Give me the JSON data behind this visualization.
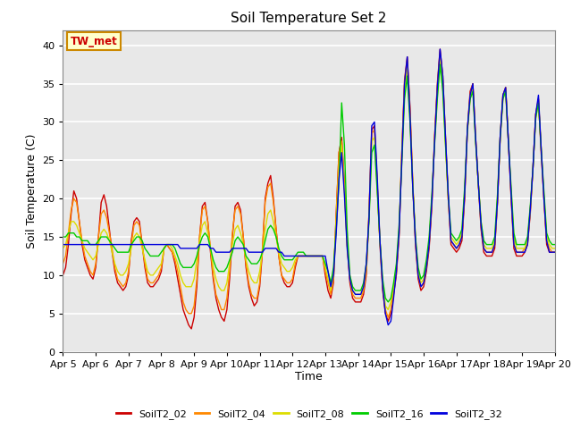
{
  "title": "Soil Temperature Set 2",
  "xlabel": "Time",
  "ylabel": "Soil Temperature (C)",
  "ylim": [
    0,
    42
  ],
  "yticks": [
    0,
    5,
    10,
    15,
    20,
    25,
    30,
    35,
    40
  ],
  "background_color": "#e8e8e8",
  "grid_color": "#ffffff",
  "legend_entries": [
    "SoilT2_02",
    "SoilT2_04",
    "SoilT2_08",
    "SoilT2_16",
    "SoilT2_32"
  ],
  "line_colors": [
    "#cc0000",
    "#ff8800",
    "#dddd00",
    "#00cc00",
    "#0000dd"
  ],
  "annotation_text": "TW_met",
  "annotation_color": "#cc0000",
  "annotation_bg": "#ffffcc",
  "annotation_border": "#cc8800",
  "series": {
    "times_days": [
      0.0,
      0.083,
      0.167,
      0.25,
      0.333,
      0.417,
      0.5,
      0.583,
      0.667,
      0.75,
      0.833,
      0.917,
      1.0,
      1.083,
      1.167,
      1.25,
      1.333,
      1.417,
      1.5,
      1.583,
      1.667,
      1.75,
      1.833,
      1.917,
      2.0,
      2.083,
      2.167,
      2.25,
      2.333,
      2.417,
      2.5,
      2.583,
      2.667,
      2.75,
      2.833,
      2.917,
      3.0,
      3.083,
      3.167,
      3.25,
      3.333,
      3.417,
      3.5,
      3.583,
      3.667,
      3.75,
      3.833,
      3.917,
      4.0,
      4.083,
      4.167,
      4.25,
      4.333,
      4.417,
      4.5,
      4.583,
      4.667,
      4.75,
      4.833,
      4.917,
      5.0,
      5.083,
      5.167,
      5.25,
      5.333,
      5.417,
      5.5,
      5.583,
      5.667,
      5.75,
      5.833,
      5.917,
      6.0,
      6.083,
      6.167,
      6.25,
      6.333,
      6.417,
      6.5,
      6.583,
      6.667,
      6.75,
      6.833,
      6.917,
      7.0,
      7.083,
      7.167,
      7.25,
      7.333,
      7.417,
      7.5,
      7.583,
      7.667,
      7.75,
      7.833,
      7.917,
      8.0,
      8.083,
      8.167,
      8.25,
      8.333,
      8.417,
      8.5,
      8.583,
      8.667,
      8.75,
      8.833,
      8.917,
      9.0,
      9.083,
      9.167,
      9.25,
      9.333,
      9.417,
      9.5,
      9.583,
      9.667,
      9.75,
      9.833,
      9.917,
      10.0,
      10.083,
      10.167,
      10.25,
      10.333,
      10.417,
      10.5,
      10.583,
      10.667,
      10.75,
      10.833,
      10.917,
      11.0,
      11.083,
      11.167,
      11.25,
      11.333,
      11.417,
      11.5,
      11.583,
      11.667,
      11.75,
      11.833,
      11.917,
      12.0,
      12.083,
      12.167,
      12.25,
      12.333,
      12.417,
      12.5,
      12.583,
      12.667,
      12.75,
      12.833,
      12.917,
      13.0,
      13.083,
      13.167,
      13.25,
      13.333,
      13.417,
      13.5,
      13.583,
      13.667,
      13.75,
      13.833,
      13.917,
      14.0,
      14.083,
      14.167,
      14.25,
      14.333,
      14.417,
      14.5,
      14.583,
      14.667,
      14.75,
      14.833,
      14.917,
      15.0
    ],
    "SoilT2_02": [
      10.0,
      11.0,
      14.0,
      18.0,
      21.0,
      20.0,
      17.0,
      14.0,
      12.0,
      11.0,
      10.0,
      9.5,
      11.0,
      15.0,
      19.5,
      20.5,
      19.0,
      16.0,
      13.0,
      10.5,
      9.0,
      8.5,
      8.0,
      8.5,
      10.0,
      14.5,
      17.0,
      17.5,
      17.0,
      14.0,
      11.0,
      9.0,
      8.5,
      8.5,
      9.0,
      9.5,
      10.5,
      13.5,
      14.0,
      13.5,
      13.0,
      11.5,
      9.5,
      7.5,
      5.5,
      4.5,
      3.5,
      3.0,
      4.5,
      8.5,
      15.0,
      19.0,
      19.5,
      17.0,
      13.0,
      9.5,
      7.0,
      5.5,
      4.5,
      4.0,
      5.5,
      9.5,
      15.0,
      19.0,
      19.5,
      18.5,
      15.0,
      11.0,
      8.5,
      7.0,
      6.0,
      6.5,
      8.5,
      13.0,
      20.0,
      22.0,
      23.0,
      20.0,
      16.0,
      12.5,
      10.0,
      9.0,
      8.5,
      8.5,
      9.0,
      11.0,
      12.5,
      12.5,
      12.5,
      12.5,
      12.5,
      12.5,
      12.5,
      12.5,
      12.5,
      12.5,
      10.0,
      8.0,
      7.0,
      9.0,
      18.0,
      26.0,
      28.0,
      22.0,
      14.0,
      9.0,
      7.0,
      6.5,
      6.5,
      6.5,
      7.5,
      10.0,
      18.0,
      29.0,
      29.5,
      22.0,
      14.0,
      8.0,
      5.0,
      4.0,
      5.0,
      7.5,
      10.0,
      15.0,
      26.0,
      35.5,
      38.5,
      32.0,
      22.0,
      14.0,
      9.5,
      8.0,
      8.5,
      10.5,
      13.5,
      19.0,
      28.0,
      35.0,
      39.5,
      36.0,
      28.0,
      20.0,
      14.0,
      13.5,
      13.0,
      13.5,
      14.5,
      20.0,
      29.0,
      34.0,
      35.0,
      28.0,
      22.0,
      16.0,
      13.0,
      12.5,
      12.5,
      12.5,
      13.5,
      19.5,
      28.0,
      33.5,
      34.5,
      27.5,
      20.0,
      13.5,
      12.5,
      12.5,
      12.5,
      13.0,
      14.0,
      18.0,
      24.0,
      31.0,
      33.0,
      26.0,
      20.0,
      14.0,
      13.0,
      13.0,
      13.0
    ],
    "SoilT2_04": [
      11.5,
      12.5,
      15.5,
      18.5,
      20.0,
      19.5,
      17.0,
      14.5,
      12.5,
      11.5,
      10.5,
      10.0,
      11.5,
      15.0,
      18.0,
      18.5,
      17.5,
      15.5,
      13.5,
      11.0,
      9.5,
      9.0,
      8.5,
      9.0,
      10.5,
      14.0,
      16.5,
      17.0,
      16.5,
      14.0,
      11.5,
      9.5,
      9.0,
      9.0,
      9.5,
      10.0,
      11.0,
      13.5,
      14.0,
      13.5,
      13.0,
      12.0,
      10.5,
      8.5,
      6.5,
      5.5,
      5.0,
      5.0,
      6.0,
      9.5,
      15.0,
      18.5,
      19.0,
      17.0,
      13.5,
      10.0,
      7.5,
      6.5,
      5.5,
      5.5,
      7.0,
      10.5,
      15.5,
      18.5,
      19.0,
      18.0,
      15.0,
      11.5,
      9.0,
      7.5,
      7.0,
      7.0,
      9.0,
      13.5,
      19.5,
      21.5,
      22.0,
      19.5,
      16.0,
      12.5,
      10.0,
      9.5,
      9.0,
      9.0,
      9.5,
      11.5,
      12.5,
      12.5,
      12.5,
      12.5,
      12.5,
      12.5,
      12.5,
      12.5,
      12.5,
      12.5,
      10.5,
      9.0,
      7.5,
      9.5,
      18.0,
      26.0,
      27.5,
      21.5,
      14.0,
      9.5,
      7.5,
      7.0,
      7.0,
      7.0,
      8.0,
      10.5,
      18.0,
      28.5,
      29.0,
      22.0,
      14.5,
      8.5,
      5.5,
      4.5,
      5.5,
      8.0,
      10.5,
      15.5,
      26.0,
      35.0,
      38.0,
      31.5,
      22.0,
      14.5,
      10.0,
      8.5,
      9.0,
      11.0,
      14.0,
      19.5,
      28.0,
      34.5,
      39.0,
      35.5,
      27.5,
      20.0,
      14.5,
      14.0,
      13.5,
      14.0,
      15.0,
      20.5,
      29.0,
      33.5,
      35.0,
      28.0,
      22.0,
      16.5,
      13.5,
      13.0,
      13.0,
      13.0,
      14.0,
      19.5,
      28.0,
      33.5,
      34.5,
      27.5,
      20.5,
      14.0,
      13.0,
      13.0,
      13.0,
      13.5,
      14.5,
      18.5,
      24.0,
      31.0,
      33.0,
      26.5,
      20.0,
      14.5,
      13.5,
      13.0,
      13.0
    ],
    "SoilT2_08": [
      13.5,
      14.0,
      15.5,
      17.0,
      17.0,
      16.5,
      15.5,
      14.5,
      13.5,
      13.0,
      12.5,
      12.0,
      12.5,
      14.0,
      15.5,
      16.0,
      15.5,
      14.5,
      13.0,
      11.5,
      10.5,
      10.0,
      10.0,
      10.5,
      11.5,
      13.5,
      15.0,
      15.5,
      15.0,
      13.5,
      12.0,
      10.5,
      10.0,
      10.0,
      10.5,
      11.0,
      11.5,
      13.5,
      14.0,
      14.0,
      13.5,
      12.5,
      11.5,
      10.0,
      9.0,
      8.5,
      8.5,
      8.5,
      9.5,
      12.0,
      14.5,
      16.5,
      17.0,
      15.5,
      13.5,
      11.0,
      9.5,
      8.5,
      8.0,
      8.0,
      9.0,
      11.5,
      14.0,
      16.0,
      16.5,
      15.5,
      14.0,
      12.0,
      10.5,
      9.5,
      9.0,
      9.0,
      10.5,
      13.0,
      16.0,
      18.0,
      18.5,
      17.0,
      15.0,
      13.0,
      11.5,
      11.0,
      10.5,
      10.5,
      11.0,
      12.0,
      12.5,
      12.5,
      12.5,
      12.5,
      12.5,
      12.5,
      12.5,
      12.5,
      12.5,
      12.5,
      11.0,
      9.5,
      8.0,
      10.0,
      17.0,
      24.0,
      27.0,
      21.0,
      14.0,
      10.0,
      8.0,
      7.5,
      7.5,
      7.5,
      8.5,
      11.0,
      17.5,
      27.5,
      28.0,
      21.5,
      14.5,
      9.0,
      6.0,
      5.5,
      6.5,
      8.5,
      11.0,
      16.0,
      25.5,
      34.0,
      37.0,
      30.5,
      22.0,
      15.0,
      10.5,
      9.0,
      9.5,
      11.5,
      14.5,
      20.0,
      27.5,
      33.5,
      38.0,
      34.5,
      27.0,
      20.0,
      15.0,
      14.5,
      14.0,
      14.5,
      15.5,
      21.0,
      28.5,
      33.0,
      34.5,
      27.5,
      22.0,
      17.0,
      14.0,
      13.5,
      13.5,
      13.5,
      14.5,
      20.0,
      27.5,
      33.0,
      34.0,
      27.5,
      21.0,
      15.0,
      13.5,
      13.5,
      13.5,
      13.5,
      14.5,
      18.5,
      24.0,
      30.5,
      32.5,
      26.5,
      20.5,
      15.0,
      14.0,
      13.5,
      13.5
    ],
    "SoilT2_16": [
      15.0,
      15.0,
      15.5,
      15.5,
      15.5,
      15.0,
      15.0,
      14.5,
      14.5,
      14.5,
      14.0,
      14.0,
      14.0,
      14.5,
      15.0,
      15.0,
      15.0,
      14.5,
      14.0,
      13.5,
      13.0,
      13.0,
      13.0,
      13.0,
      13.0,
      14.0,
      14.5,
      15.0,
      15.0,
      14.5,
      13.5,
      13.0,
      12.5,
      12.5,
      12.5,
      12.5,
      13.0,
      13.5,
      14.0,
      14.0,
      14.0,
      13.5,
      12.5,
      11.5,
      11.0,
      11.0,
      11.0,
      11.0,
      11.5,
      12.5,
      14.0,
      15.0,
      15.5,
      15.0,
      13.5,
      12.0,
      11.0,
      10.5,
      10.5,
      10.5,
      11.0,
      12.0,
      13.0,
      14.5,
      15.0,
      14.5,
      14.0,
      12.5,
      12.0,
      11.5,
      11.5,
      11.5,
      12.0,
      13.0,
      14.5,
      16.0,
      16.5,
      16.0,
      15.0,
      13.5,
      12.5,
      12.0,
      12.0,
      12.0,
      12.0,
      12.5,
      13.0,
      13.0,
      13.0,
      12.5,
      12.5,
      12.5,
      12.5,
      12.5,
      12.5,
      12.5,
      11.5,
      10.5,
      9.0,
      11.0,
      16.0,
      22.0,
      32.5,
      27.0,
      16.0,
      10.0,
      8.5,
      8.0,
      8.0,
      8.0,
      9.0,
      11.5,
      17.0,
      26.0,
      27.0,
      21.0,
      14.5,
      9.5,
      7.0,
      6.5,
      7.0,
      9.0,
      11.5,
      16.5,
      24.5,
      33.0,
      36.0,
      30.0,
      21.5,
      15.0,
      11.0,
      9.5,
      10.0,
      12.0,
      15.0,
      20.5,
      27.0,
      33.0,
      37.5,
      34.0,
      27.0,
      20.5,
      15.5,
      15.0,
      14.5,
      15.0,
      16.0,
      21.5,
      29.0,
      33.0,
      34.0,
      27.5,
      22.0,
      17.0,
      14.5,
      14.0,
      14.0,
      14.0,
      15.0,
      20.5,
      28.0,
      33.0,
      34.0,
      27.5,
      21.5,
      15.5,
      14.0,
      14.0,
      14.0,
      14.0,
      15.0,
      19.0,
      24.0,
      30.5,
      32.5,
      26.5,
      21.0,
      15.5,
      14.5,
      14.0,
      14.0
    ],
    "SoilT2_32": [
      14.0,
      14.0,
      14.0,
      14.0,
      14.0,
      14.0,
      14.0,
      14.0,
      14.0,
      14.0,
      14.0,
      14.0,
      14.0,
      14.0,
      14.0,
      14.0,
      14.0,
      14.0,
      14.0,
      14.0,
      14.0,
      14.0,
      14.0,
      14.0,
      14.0,
      14.0,
      14.0,
      14.0,
      14.0,
      14.0,
      14.0,
      14.0,
      14.0,
      14.0,
      14.0,
      14.0,
      14.0,
      14.0,
      14.0,
      14.0,
      14.0,
      14.0,
      14.0,
      13.5,
      13.5,
      13.5,
      13.5,
      13.5,
      13.5,
      13.5,
      14.0,
      14.0,
      14.0,
      14.0,
      13.5,
      13.5,
      13.0,
      13.0,
      13.0,
      13.0,
      13.0,
      13.0,
      13.5,
      13.5,
      13.5,
      13.5,
      13.5,
      13.5,
      13.0,
      13.0,
      13.0,
      13.0,
      13.0,
      13.0,
      13.5,
      13.5,
      13.5,
      13.5,
      13.5,
      13.0,
      13.0,
      12.5,
      12.5,
      12.5,
      12.5,
      12.5,
      12.5,
      12.5,
      12.5,
      12.5,
      12.5,
      12.5,
      12.5,
      12.5,
      12.5,
      12.5,
      12.5,
      10.5,
      8.5,
      10.0,
      15.5,
      22.5,
      26.0,
      20.5,
      13.5,
      9.5,
      8.0,
      7.5,
      7.5,
      7.5,
      8.5,
      11.5,
      17.5,
      29.5,
      30.0,
      23.0,
      14.5,
      8.5,
      5.0,
      3.5,
      4.0,
      7.0,
      10.5,
      15.5,
      25.0,
      35.0,
      38.5,
      31.0,
      21.5,
      14.5,
      10.0,
      8.5,
      9.0,
      11.0,
      14.0,
      19.5,
      27.5,
      34.5,
      39.5,
      36.0,
      28.0,
      20.5,
      14.5,
      14.0,
      13.5,
      14.0,
      15.0,
      20.5,
      29.0,
      33.5,
      35.0,
      28.0,
      22.0,
      16.5,
      13.5,
      13.0,
      13.0,
      13.0,
      14.0,
      19.5,
      28.0,
      33.5,
      34.5,
      27.5,
      20.5,
      14.0,
      13.0,
      13.0,
      13.0,
      13.0,
      14.0,
      18.5,
      24.0,
      31.0,
      33.5,
      26.5,
      20.0,
      14.5,
      13.0,
      13.0,
      13.0
    ]
  }
}
